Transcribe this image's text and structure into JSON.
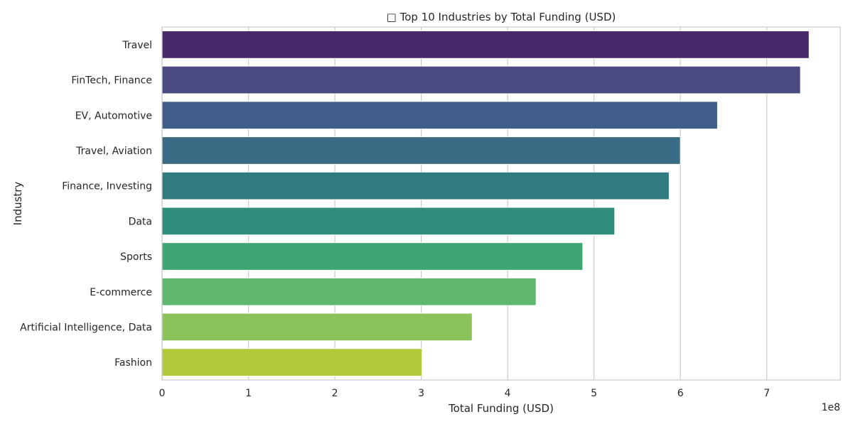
{
  "chart_data": {
    "type": "bar",
    "orientation": "horizontal",
    "title": "□ Top 10 Industries by Total Funding (USD)",
    "xlabel": "Total Funding (USD)",
    "ylabel": "Industry",
    "x_offset_label": "1e8",
    "xlim": [
      0,
      7.85
    ],
    "x_ticks": [
      0,
      1,
      2,
      3,
      4,
      5,
      6,
      7
    ],
    "grid": true,
    "categories": [
      "Travel",
      "FinTech, Finance",
      "EV, Automotive",
      "Travel, Aviation",
      "Finance, Investing",
      "Data",
      "Sports",
      "E-commerce",
      "Artificial Intelligence, Data",
      "Fashion"
    ],
    "values": [
      7.49,
      7.39,
      6.43,
      6.0,
      5.87,
      5.24,
      4.87,
      4.33,
      3.59,
      3.01
    ],
    "colors": [
      "#482a6b",
      "#4a4a80",
      "#405d8a",
      "#3a6d85",
      "#307b7f",
      "#2e8e7b",
      "#3ea672",
      "#61b86e",
      "#89c35a",
      "#b2c93a"
    ]
  }
}
